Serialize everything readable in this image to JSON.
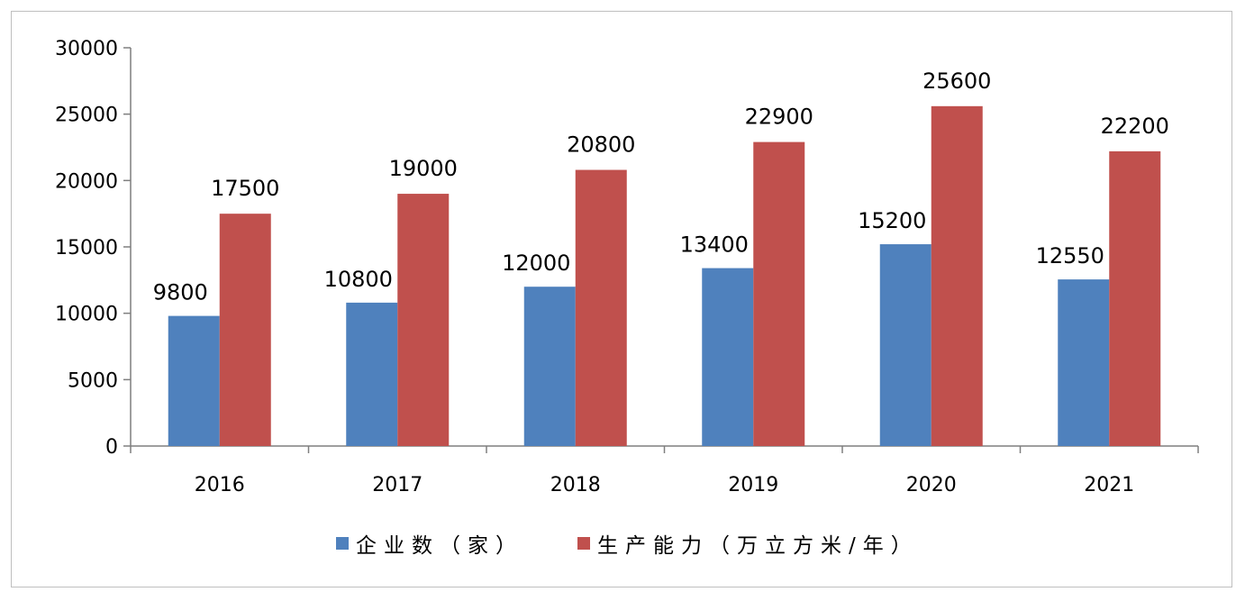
{
  "chart_data": {
    "type": "bar",
    "categories": [
      "2016",
      "2017",
      "2018",
      "2019",
      "2020",
      "2021"
    ],
    "series": [
      {
        "name": "企业数（家）",
        "color": "#4F81BD",
        "values": [
          9800,
          10800,
          12000,
          13400,
          15200,
          12550
        ]
      },
      {
        "name": "生产能力（万立方米/年）",
        "color": "#C0504D",
        "values": [
          17500,
          19000,
          20800,
          22900,
          25600,
          22200
        ]
      }
    ],
    "title": "",
    "xlabel": "",
    "ylabel": "",
    "ylim": [
      0,
      30000
    ],
    "yticks": [
      0,
      5000,
      10000,
      15000,
      20000,
      25000,
      30000
    ],
    "grid": false,
    "legend_position": "bottom"
  }
}
